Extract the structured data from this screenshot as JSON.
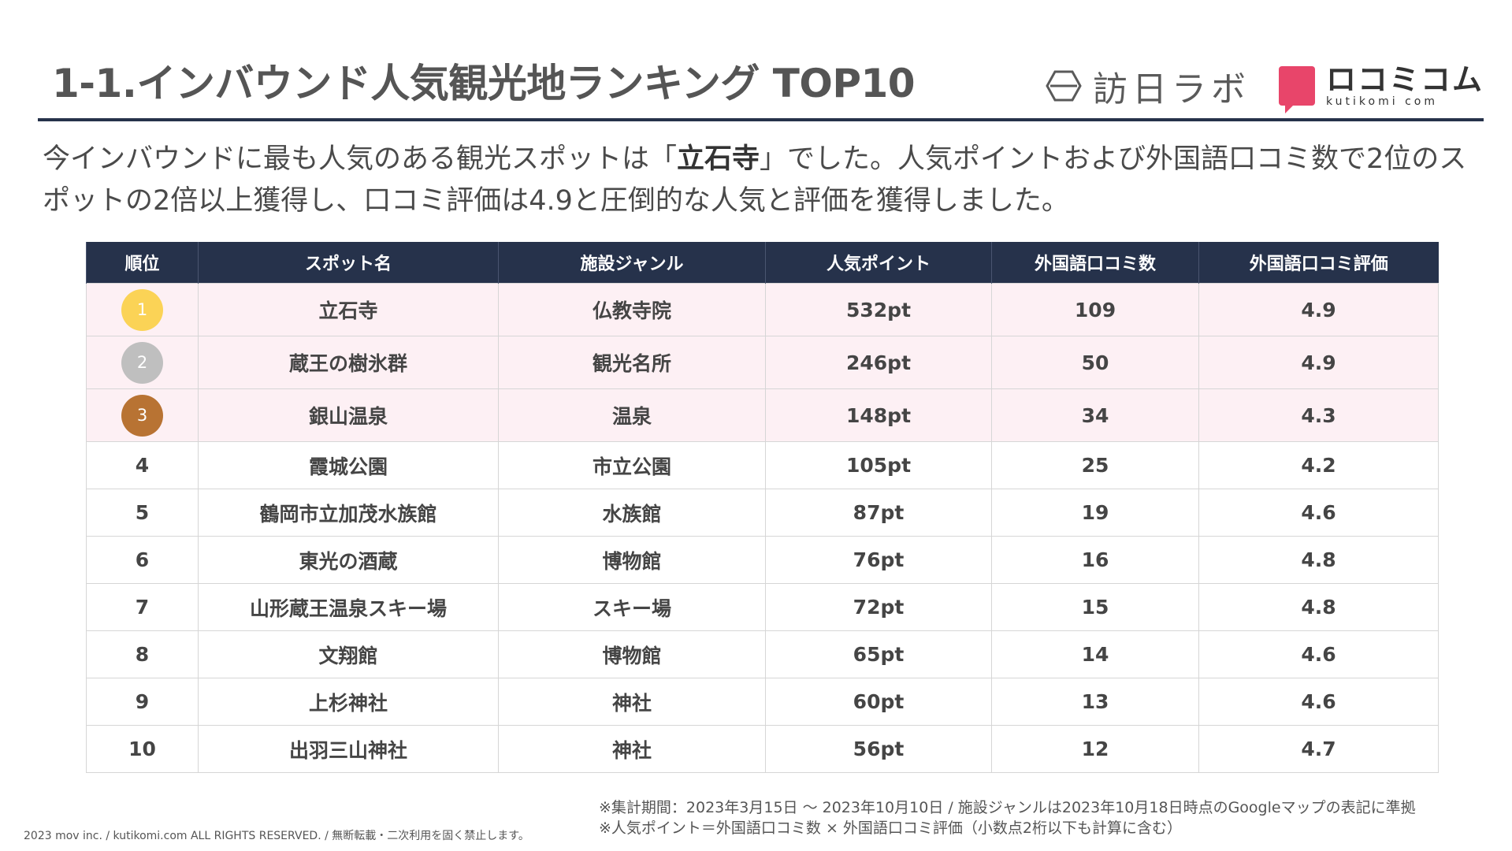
{
  "header": {
    "title": "1-1.インバウンド人気観光地ランキング TOP10",
    "logos": {
      "hojin_text": "訪日ラボ",
      "kutikomi_main": "ロコミコム",
      "kutikomi_sub": "kutikomi com"
    }
  },
  "lead": {
    "before": "今インバウンドに最も人気のある観光スポットは「",
    "highlight": "立石寺",
    "after": "」でした。人気ポイントおよび外国語口コミ数で2位のスポットの2倍以上獲得し、口コミ評価は4.9と圧倒的な人気と評価を獲得しました。"
  },
  "table": {
    "headers": [
      "順位",
      "スポット名",
      "施設ジャンル",
      "人気ポイント",
      "外国語口コミ数",
      "外国語口コミ評価"
    ],
    "medal_colors": [
      "#fbd356",
      "#bfbfbf",
      "#b87333"
    ],
    "rows": [
      {
        "rank": "1",
        "name": "立石寺",
        "genre": "仏教寺院",
        "points": "532pt",
        "reviews": "109",
        "rating": "4.9"
      },
      {
        "rank": "2",
        "name": "蔵王の樹氷群",
        "genre": "観光名所",
        "points": "246pt",
        "reviews": "50",
        "rating": "4.9"
      },
      {
        "rank": "3",
        "name": "銀山温泉",
        "genre": "温泉",
        "points": "148pt",
        "reviews": "34",
        "rating": "4.3"
      },
      {
        "rank": "4",
        "name": "霞城公園",
        "genre": "市立公園",
        "points": "105pt",
        "reviews": "25",
        "rating": "4.2"
      },
      {
        "rank": "5",
        "name": "鶴岡市立加茂水族館",
        "genre": "水族館",
        "points": "87pt",
        "reviews": "19",
        "rating": "4.6"
      },
      {
        "rank": "6",
        "name": "東光の酒蔵",
        "genre": "博物館",
        "points": "76pt",
        "reviews": "16",
        "rating": "4.8"
      },
      {
        "rank": "7",
        "name": "山形蔵王温泉スキー場",
        "genre": "スキー場",
        "points": "72pt",
        "reviews": "15",
        "rating": "4.8"
      },
      {
        "rank": "8",
        "name": "文翔館",
        "genre": "博物館",
        "points": "65pt",
        "reviews": "14",
        "rating": "4.6"
      },
      {
        "rank": "9",
        "name": "上杉神社",
        "genre": "神社",
        "points": "60pt",
        "reviews": "13",
        "rating": "4.6"
      },
      {
        "rank": "10",
        "name": "出羽三山神社",
        "genre": "神社",
        "points": "56pt",
        "reviews": "12",
        "rating": "4.7"
      }
    ]
  },
  "notes": [
    "※集計期間：2023年3月15日 〜 2023年10月10日 / 施設ジャンルは2023年10月18日時点のGoogleマップの表記に準拠",
    "※人気ポイント＝外国語口コミ数 × 外国語口コミ評価（小数点2桁以下も計算に含む）"
  ],
  "footer": {
    "copyright": "2023 mov inc. / kutikomi.com ALL RIGHTS RESERVED. / 無断転載・二次利用を固く禁止します。"
  }
}
